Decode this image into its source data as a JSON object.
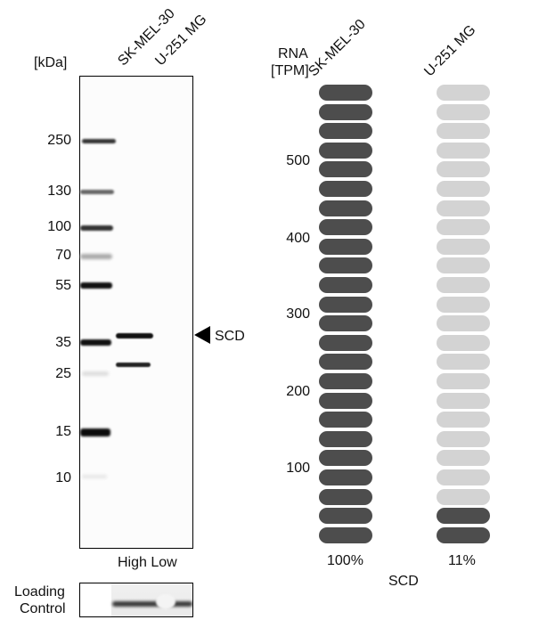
{
  "western_blot": {
    "unit_label": "[kDa]",
    "lanes": [
      "SK-MEL-30",
      "U-251 MG"
    ],
    "markers": [
      {
        "kda": "250",
        "y": 158
      },
      {
        "kda": "130",
        "y": 215
      },
      {
        "kda": "100",
        "y": 255
      },
      {
        "kda": "70",
        "y": 287
      },
      {
        "kda": "55",
        "y": 321
      },
      {
        "kda": "35",
        "y": 385
      },
      {
        "kda": "25",
        "y": 420
      },
      {
        "kda": "15",
        "y": 485
      },
      {
        "kda": "10",
        "y": 537
      }
    ],
    "target_label": "SCD",
    "expression_labels": "High Low",
    "loading_control_line1": "Loading",
    "loading_control_line2": "Control"
  },
  "rna_chart": {
    "ylabel_line1": "RNA",
    "ylabel_line2": "[TPM]",
    "gene": "SCD",
    "columns": [
      {
        "name": "SK-MEL-30",
        "percent": "100%"
      },
      {
        "name": "U-251 MG",
        "percent": "11%"
      }
    ],
    "ticks": [
      "500",
      "400",
      "300",
      "200",
      "100"
    ],
    "colors": {
      "filled": "#4d4d4d",
      "empty": "#d3d3d3"
    }
  },
  "chart_data": {
    "type": "bar",
    "title": "SCD",
    "xlabel": "",
    "ylabel": "RNA [TPM]",
    "categories": [
      "SK-MEL-30",
      "U-251 MG"
    ],
    "values_percent": [
      100,
      11
    ],
    "segments_total": 24,
    "segments_filled": [
      24,
      2
    ],
    "y_ticks": [
      100,
      200,
      300,
      400,
      500
    ],
    "ylim": [
      0,
      560
    ],
    "value_labels": [
      "100%",
      "11%"
    ],
    "western_blot": {
      "markers_kda": [
        250,
        130,
        100,
        70,
        55,
        35,
        25,
        15,
        10
      ],
      "lanes": [
        "SK-MEL-30",
        "U-251 MG"
      ],
      "expression": [
        "High",
        "Low"
      ],
      "target": "SCD",
      "target_band_kda_approx": 37
    }
  }
}
